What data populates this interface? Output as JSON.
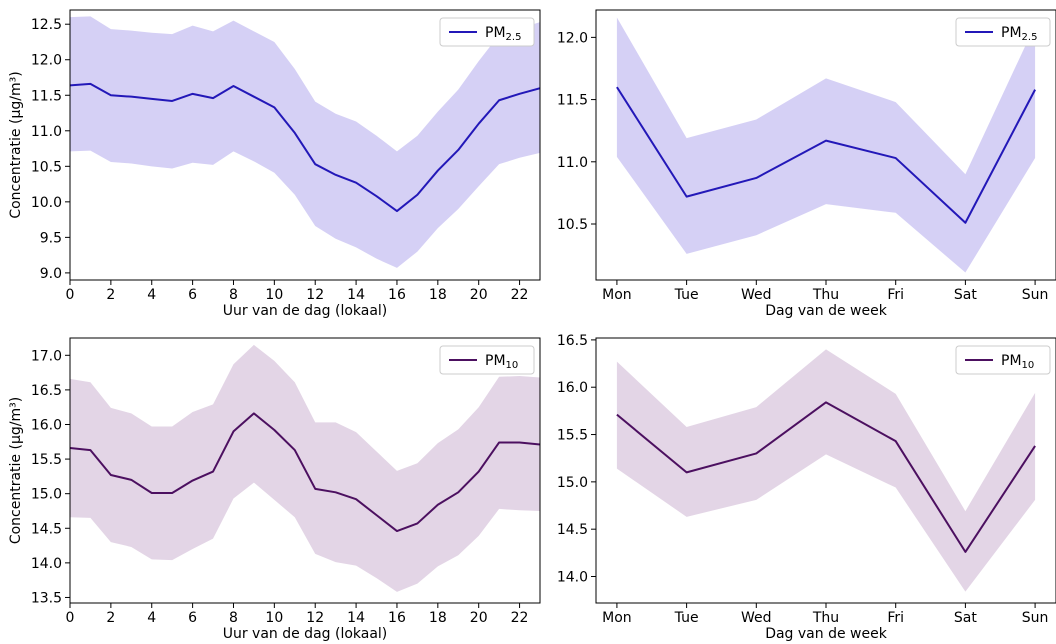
{
  "chart_data": [
    {
      "type": "line",
      "xlabel": "Uur van de dag (lokaal)",
      "ylabel": "Concentratie (µg/m³)",
      "xlim": [
        0,
        23
      ],
      "ylim": [
        8.9,
        12.7
      ],
      "x_ticks": [
        0,
        2,
        4,
        6,
        8,
        10,
        12,
        14,
        16,
        18,
        20,
        22
      ],
      "y_ticks": [
        9.0,
        9.5,
        10.0,
        10.5,
        11.0,
        11.5,
        12.0,
        12.5
      ],
      "legend": {
        "position": "top-right",
        "label": "PM",
        "sub": "2.5"
      },
      "line_color": "#2318b8",
      "band_color": "#d5d0f5",
      "x": [
        0,
        1,
        2,
        3,
        4,
        5,
        6,
        7,
        8,
        9,
        10,
        11,
        12,
        13,
        14,
        15,
        16,
        17,
        18,
        19,
        20,
        21,
        22,
        23
      ],
      "series": [
        {
          "values": [
            11.64,
            11.66,
            11.5,
            11.48,
            11.45,
            11.42,
            11.52,
            11.46,
            11.63,
            11.48,
            11.33,
            10.97,
            10.53,
            10.38,
            10.27,
            10.08,
            9.87,
            10.1,
            10.44,
            10.73,
            11.1,
            11.43,
            11.52,
            11.6
          ],
          "lower": [
            10.71,
            10.72,
            10.56,
            10.54,
            10.5,
            10.47,
            10.55,
            10.52,
            10.71,
            10.57,
            10.41,
            10.1,
            9.66,
            9.48,
            9.36,
            9.2,
            9.07,
            9.3,
            9.63,
            9.9,
            10.22,
            10.53,
            10.62,
            10.69
          ],
          "upper": [
            12.6,
            12.61,
            12.43,
            12.41,
            12.38,
            12.36,
            12.48,
            12.4,
            12.55,
            12.4,
            12.25,
            11.87,
            11.41,
            11.24,
            11.13,
            10.93,
            10.71,
            10.93,
            11.27,
            11.58,
            11.98,
            12.35,
            12.44,
            12.53
          ]
        }
      ]
    },
    {
      "type": "line",
      "xlabel": "Dag van de week",
      "ylabel": "",
      "ylim": [
        10.05,
        12.22
      ],
      "categories": [
        "Mon",
        "Tue",
        "Wed",
        "Thu",
        "Fri",
        "Sat",
        "Sun"
      ],
      "y_ticks": [
        10.5,
        11.0,
        11.5,
        12.0
      ],
      "legend": {
        "position": "top-right",
        "label": "PM",
        "sub": "2.5"
      },
      "line_color": "#2318b8",
      "band_color": "#d5d0f5",
      "series": [
        {
          "values": [
            11.6,
            10.72,
            10.87,
            11.17,
            11.03,
            10.51,
            11.58
          ],
          "lower": [
            11.04,
            10.26,
            10.41,
            10.66,
            10.59,
            10.11,
            11.03
          ],
          "upper": [
            12.16,
            11.19,
            11.34,
            11.67,
            11.48,
            10.9,
            12.1
          ]
        }
      ]
    },
    {
      "type": "line",
      "xlabel": "Uur van de dag (lokaal)",
      "ylabel": "Concentratie (µg/m³)",
      "xlim": [
        0,
        23
      ],
      "ylim": [
        13.42,
        17.25
      ],
      "x_ticks": [
        0,
        2,
        4,
        6,
        8,
        10,
        12,
        14,
        16,
        18,
        20,
        22
      ],
      "y_ticks": [
        13.5,
        14.0,
        14.5,
        15.0,
        15.5,
        16.0,
        16.5,
        17.0
      ],
      "legend": {
        "position": "top-right",
        "label": "PM",
        "sub": "10"
      },
      "line_color": "#4c1060",
      "band_color": "#e3d5e6",
      "x": [
        0,
        1,
        2,
        3,
        4,
        5,
        6,
        7,
        8,
        9,
        10,
        11,
        12,
        13,
        14,
        15,
        16,
        17,
        18,
        19,
        20,
        21,
        22,
        23
      ],
      "series": [
        {
          "values": [
            15.66,
            15.63,
            15.27,
            15.2,
            15.01,
            15.01,
            15.19,
            15.32,
            15.9,
            16.16,
            15.92,
            15.63,
            15.07,
            15.02,
            14.92,
            14.69,
            14.46,
            14.57,
            14.84,
            15.02,
            15.32,
            15.74,
            15.74,
            15.71
          ],
          "lower": [
            14.66,
            14.65,
            14.3,
            14.23,
            14.05,
            14.04,
            14.2,
            14.35,
            14.93,
            15.16,
            14.91,
            14.66,
            14.13,
            14.01,
            13.96,
            13.78,
            13.58,
            13.7,
            13.95,
            14.11,
            14.39,
            14.78,
            14.76,
            14.75
          ],
          "upper": [
            16.66,
            16.61,
            16.24,
            16.16,
            15.97,
            15.97,
            16.18,
            16.29,
            16.87,
            17.15,
            16.92,
            16.61,
            16.03,
            16.03,
            15.89,
            15.61,
            15.33,
            15.44,
            15.73,
            15.93,
            16.25,
            16.69,
            16.7,
            16.68
          ]
        }
      ]
    },
    {
      "type": "line",
      "xlabel": "Dag van de week",
      "ylabel": "",
      "ylim": [
        13.72,
        16.52
      ],
      "categories": [
        "Mon",
        "Tue",
        "Wed",
        "Thu",
        "Fri",
        "Sat",
        "Sun"
      ],
      "y_ticks": [
        14.0,
        14.5,
        15.0,
        15.5,
        16.0,
        16.5
      ],
      "legend": {
        "position": "top-right",
        "label": "PM",
        "sub": "10"
      },
      "line_color": "#4c1060",
      "band_color": "#e3d5e6",
      "series": [
        {
          "values": [
            15.71,
            15.1,
            15.3,
            15.84,
            15.43,
            14.26,
            15.38
          ],
          "lower": [
            15.14,
            14.63,
            14.81,
            15.29,
            14.94,
            13.84,
            14.81
          ],
          "upper": [
            16.27,
            15.58,
            15.79,
            16.4,
            15.93,
            14.69,
            15.94
          ]
        }
      ]
    }
  ]
}
